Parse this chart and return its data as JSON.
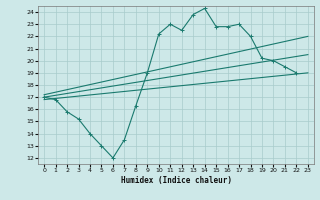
{
  "xlabel": "Humidex (Indice chaleur)",
  "bg_color": "#cde8e8",
  "line_color": "#1a7a6e",
  "grid_color": "#a8cccc",
  "xlim": [
    -0.5,
    23.5
  ],
  "ylim": [
    11.5,
    24.5
  ],
  "xticks": [
    0,
    1,
    2,
    3,
    4,
    5,
    6,
    7,
    8,
    9,
    10,
    11,
    12,
    13,
    14,
    15,
    16,
    17,
    18,
    19,
    20,
    21,
    22,
    23
  ],
  "yticks": [
    12,
    13,
    14,
    15,
    16,
    17,
    18,
    19,
    20,
    21,
    22,
    23,
    24
  ],
  "main_x": [
    0,
    1,
    2,
    3,
    4,
    5,
    6,
    7,
    8,
    9,
    10,
    11,
    12,
    13,
    14,
    15,
    16,
    17,
    18,
    19,
    20,
    21,
    22
  ],
  "main_y": [
    17.0,
    16.8,
    15.8,
    15.2,
    14.0,
    13.0,
    12.0,
    13.5,
    16.3,
    19.0,
    22.2,
    23.0,
    22.5,
    23.8,
    24.3,
    22.8,
    22.8,
    23.0,
    22.0,
    20.2,
    20.0,
    19.5,
    19.0
  ],
  "line1_x": [
    0,
    23
  ],
  "line1_y": [
    17.2,
    22.0
  ],
  "line2_x": [
    0,
    23
  ],
  "line2_y": [
    17.0,
    20.5
  ],
  "line3_x": [
    0,
    23
  ],
  "line3_y": [
    16.8,
    19.0
  ]
}
